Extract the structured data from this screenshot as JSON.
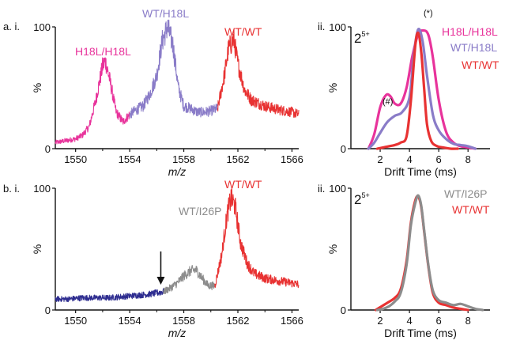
{
  "chart_data": [
    {
      "id": "a-i",
      "panel_label": "a. i.",
      "type": "line",
      "xlabel": "m/z",
      "ylabel": "%",
      "xlim": [
        1548.5,
        1566.5
      ],
      "ylim": [
        0,
        100
      ],
      "x_ticks": [
        "1550",
        "1554",
        "1558",
        "1562",
        "1566"
      ],
      "y_ticks": [
        "0",
        "100"
      ],
      "series": [
        {
          "name": "H18L/H18L",
          "color": "#e8339b",
          "x": [
            1548.5,
            1549,
            1550,
            1550.5,
            1551,
            1551.5,
            1552,
            1552.2,
            1552.5,
            1553,
            1553.5,
            1554
          ],
          "y": [
            5,
            6,
            8,
            11,
            18,
            40,
            68,
            72,
            58,
            30,
            22,
            28
          ]
        },
        {
          "name": "WT/H18L",
          "color": "#8a7cc8",
          "x": [
            1554,
            1554.5,
            1555,
            1555.5,
            1556,
            1556.4,
            1556.8,
            1557.2,
            1557.6,
            1558,
            1558.5,
            1559,
            1559.5,
            1560,
            1560.5
          ],
          "y": [
            28,
            32,
            35,
            45,
            60,
            88,
            100,
            85,
            50,
            35,
            33,
            30,
            30,
            31,
            33
          ]
        },
        {
          "name": "WT/WT",
          "color": "#e83232",
          "x": [
            1560.5,
            1561,
            1561.3,
            1561.7,
            1562,
            1562.5,
            1563,
            1564,
            1565,
            1566,
            1566.5
          ],
          "y": [
            33,
            60,
            82,
            90,
            70,
            48,
            40,
            35,
            32,
            30,
            28
          ]
        }
      ],
      "labels": [
        {
          "text": "H18L/H18L",
          "color": "#e8339b"
        },
        {
          "text": "WT/H18L",
          "color": "#8a7cc8"
        },
        {
          "text": "WT/WT",
          "color": "#e83232"
        }
      ]
    },
    {
      "id": "a-ii",
      "panel_label": "ii.",
      "type": "line",
      "charge_base": "2",
      "charge_sup": "5+",
      "xlabel": "Drift Time (ms)",
      "ylabel": "%",
      "xlim": [
        0,
        9.5
      ],
      "ylim": [
        0,
        100
      ],
      "x_ticks": [
        "2",
        "4",
        "6",
        "8"
      ],
      "y_ticks": [
        "0",
        "100"
      ],
      "annotations": [
        "(#)",
        "(*)"
      ],
      "series": [
        {
          "name": "H18L/H18L",
          "color": "#e8339b",
          "x": [
            1.2,
            1.6,
            2.0,
            2.4,
            2.7,
            3.0,
            3.4,
            3.8,
            4.2,
            4.6,
            5.0,
            5.3,
            5.6,
            6.0,
            6.5,
            7.0,
            7.5,
            8.0,
            8.5
          ],
          "y": [
            0,
            12,
            34,
            44,
            43,
            37,
            37,
            50,
            76,
            94,
            97,
            93,
            75,
            40,
            14,
            5,
            2,
            1,
            0
          ]
        },
        {
          "name": "WT/H18L",
          "color": "#8a7cc8",
          "x": [
            1.2,
            1.6,
            2.0,
            2.5,
            3.0,
            3.5,
            4.0,
            4.3,
            4.6,
            4.9,
            5.2,
            5.6,
            6.0,
            6.5,
            7.0,
            7.5,
            8.0,
            8.5
          ],
          "y": [
            0,
            5,
            13,
            22,
            27,
            30,
            42,
            78,
            98,
            88,
            60,
            28,
            15,
            8,
            4,
            3,
            2,
            0
          ]
        },
        {
          "name": "WT/WT",
          "color": "#e83232",
          "x": [
            1.8,
            2.2,
            2.6,
            3.0,
            3.4,
            3.8,
            4.1,
            4.4,
            4.6,
            4.8,
            5.0,
            5.2,
            5.5,
            5.9,
            6.3,
            6.8,
            7.3
          ],
          "y": [
            0,
            1,
            2,
            3,
            5,
            10,
            40,
            85,
            95,
            80,
            50,
            20,
            6,
            2,
            1,
            0,
            0
          ]
        }
      ],
      "labels": [
        {
          "text": "H18L/H18L",
          "color": "#e8339b"
        },
        {
          "text": "WT/H18L",
          "color": "#8a7cc8"
        },
        {
          "text": "WT/WT",
          "color": "#e83232"
        }
      ]
    },
    {
      "id": "b-i",
      "panel_label": "b. i.",
      "type": "line",
      "xlabel": "m/z",
      "ylabel": "%",
      "xlim": [
        1548.5,
        1566.5
      ],
      "ylim": [
        0,
        100
      ],
      "x_ticks": [
        "1550",
        "1554",
        "1558",
        "1562",
        "1566"
      ],
      "y_ticks": [
        "0",
        "100"
      ],
      "arrow_x": 1556.3,
      "series": [
        {
          "name": "",
          "color": "#2e2d90",
          "x": [
            1548.5,
            1549.5,
            1550.5,
            1551.5,
            1552.5,
            1553.5,
            1554.5,
            1555.5,
            1556.5
          ],
          "y": [
            9,
            9,
            10,
            10,
            10,
            11,
            12,
            13,
            15
          ]
        },
        {
          "name": "WT/I26P",
          "color": "#8c8c8c",
          "x": [
            1556.5,
            1557,
            1557.5,
            1558,
            1558.5,
            1558.9,
            1559.3,
            1559.8,
            1560.3
          ],
          "y": [
            15,
            18,
            22,
            28,
            32,
            33,
            27,
            20,
            20
          ]
        },
        {
          "name": "WT/WT",
          "color": "#e83232",
          "x": [
            1560.3,
            1560.8,
            1561.2,
            1561.5,
            1561.8,
            1562.2,
            1562.7,
            1563.2,
            1564,
            1565,
            1566,
            1566.5
          ],
          "y": [
            20,
            45,
            78,
            92,
            85,
            55,
            38,
            30,
            26,
            24,
            22,
            21
          ]
        }
      ],
      "labels": [
        {
          "text": "WT/I26P",
          "color": "#8c8c8c"
        },
        {
          "text": "WT/WT",
          "color": "#e83232"
        }
      ]
    },
    {
      "id": "b-ii",
      "panel_label": "ii.",
      "type": "line",
      "charge_base": "2",
      "charge_sup": "5+",
      "xlabel": "Drift Time (ms)",
      "ylabel": "%",
      "xlim": [
        0,
        9.5
      ],
      "ylim": [
        0,
        100
      ],
      "x_ticks": [
        "2",
        "4",
        "6",
        "8"
      ],
      "y_ticks": [
        "0",
        "100"
      ],
      "series": [
        {
          "name": "WT/WT",
          "color": "#e83232",
          "x": [
            1.7,
            2.1,
            2.5,
            3.0,
            3.4,
            3.8,
            4.1,
            4.4,
            4.6,
            4.8,
            5.0,
            5.3,
            5.6,
            6.0,
            6.5,
            7.0,
            7.5,
            8.0
          ],
          "y": [
            0,
            3,
            6,
            10,
            17,
            40,
            72,
            90,
            93,
            85,
            65,
            35,
            14,
            6,
            4,
            2,
            1,
            0
          ]
        },
        {
          "name": "WT/I26P",
          "color": "#8c8c8c",
          "x": [
            1.8,
            2.2,
            2.6,
            3.0,
            3.4,
            3.8,
            4.1,
            4.4,
            4.6,
            4.8,
            5.0,
            5.3,
            5.6,
            6.0,
            6.5,
            7.0,
            7.5,
            8.0,
            8.5,
            9.0
          ],
          "y": [
            0,
            1,
            3,
            7,
            14,
            37,
            70,
            88,
            94,
            86,
            66,
            36,
            16,
            8,
            6,
            4,
            5,
            3,
            1,
            0
          ]
        }
      ],
      "labels": [
        {
          "text": "WT/I26P",
          "color": "#8c8c8c"
        },
        {
          "text": "WT/WT",
          "color": "#e83232"
        }
      ]
    }
  ]
}
